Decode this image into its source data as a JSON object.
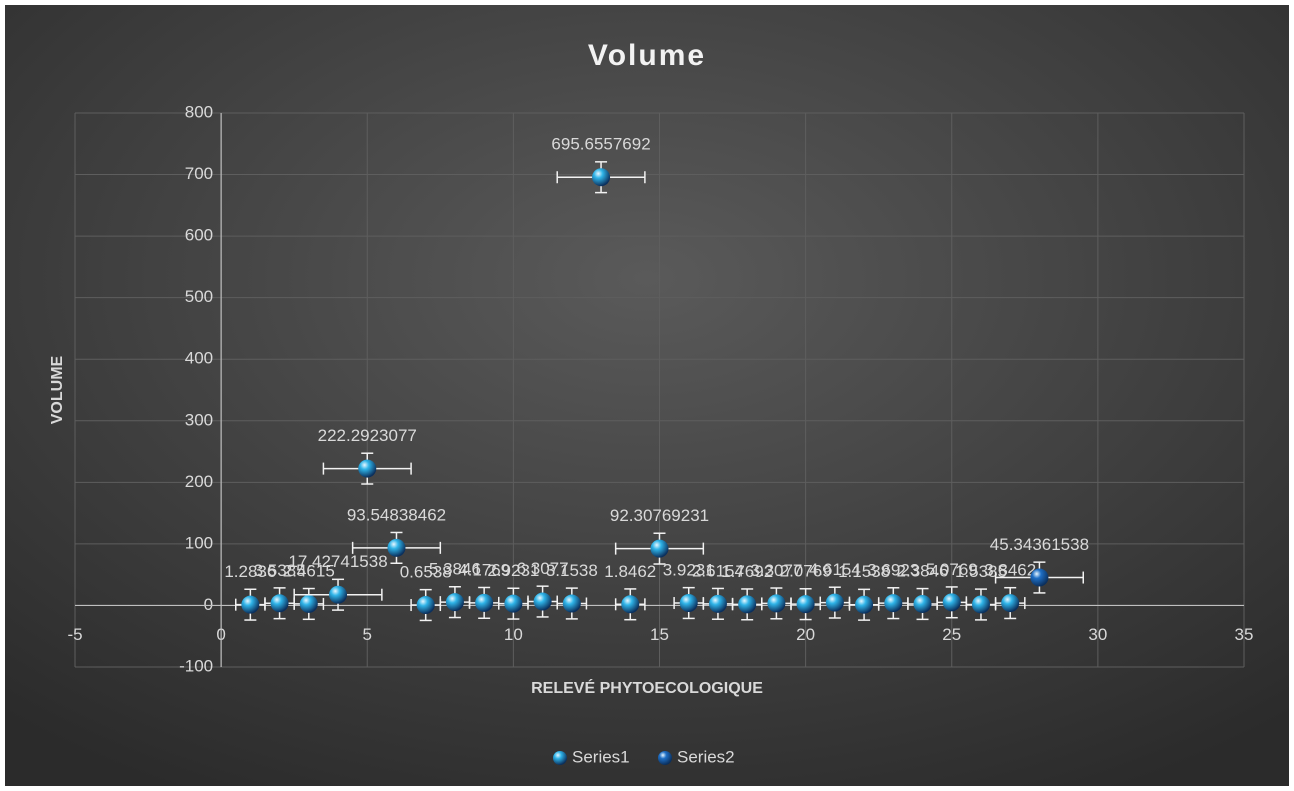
{
  "chart_data": {
    "type": "scatter",
    "title": "Volume",
    "x_label": "RELEVÉ PHYTOECOLOGIQUE",
    "y_label": "VOLUME",
    "xlim": [
      -5,
      35
    ],
    "xticks": [
      -5,
      0,
      5,
      10,
      15,
      20,
      25,
      30,
      35
    ],
    "ylim": [
      -100,
      800
    ],
    "yticks": [
      -100,
      0,
      100,
      200,
      300,
      400,
      500,
      600,
      700,
      800
    ],
    "grid": true,
    "legend": "bottom",
    "series": [
      {
        "name": "Series1",
        "color": "#2fb4e8",
        "x": [
          1,
          2,
          3,
          4,
          5,
          6,
          7,
          8,
          9,
          10,
          11,
          12,
          13,
          14,
          15,
          16,
          17,
          18,
          19,
          20,
          21,
          22,
          23,
          24,
          25,
          26,
          27
        ],
        "values": [
          1.2836,
          3.5385,
          2.4615,
          17.42741538,
          222.2923077,
          93.54838462,
          0.6538,
          5.3846,
          4.1769,
          2.9231,
          6.3077,
          3.1538,
          695.6557692,
          1.8462,
          92.30769231,
          3.9231,
          2.6154,
          1.7692,
          3.3077,
          2.0769,
          4.6154,
          1.1538,
          3.6923,
          2.3846,
          5.0769,
          1.5385,
          3.8462
        ],
        "x_errors": [
          0.5,
          0.5,
          0.5,
          1.5,
          1.5,
          1.5,
          0.5,
          0.5,
          0.5,
          0.5,
          0.5,
          0.5,
          1.5,
          0.5,
          1.5,
          0.5,
          0.5,
          0.5,
          0.5,
          0.5,
          0.5,
          0.5,
          0.5,
          0.5,
          0.5,
          0.5,
          0.5
        ],
        "y_errors": [
          25,
          25,
          25,
          25,
          25,
          25,
          25,
          25,
          25,
          25,
          25,
          25,
          25,
          25,
          25,
          25,
          25,
          25,
          25,
          25,
          25,
          25,
          25,
          25,
          25,
          25,
          25
        ]
      },
      {
        "name": "Series2",
        "color": "#1f6fc5",
        "x": [
          28
        ],
        "values": [
          45.34361538
        ],
        "x_errors": [
          1.5
        ],
        "y_errors": [
          25
        ]
      }
    ]
  }
}
